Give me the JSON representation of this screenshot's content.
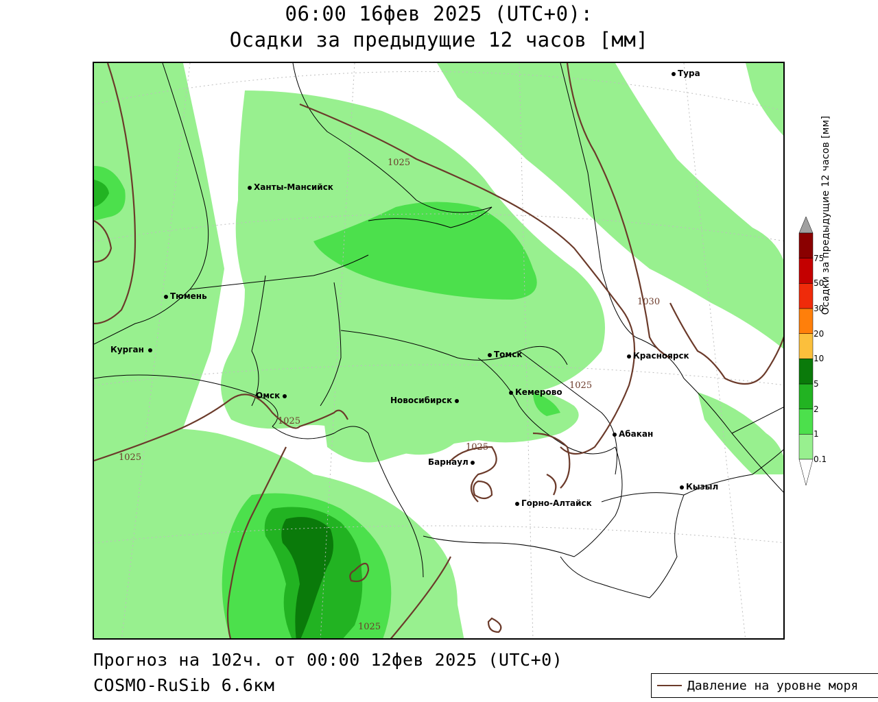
{
  "header": {
    "title_line1": "06:00 16фев 2025 (UTC+0):",
    "title_line2": "Осадки за предыдущие 12 часов [мм]"
  },
  "footer": {
    "forecast": "Прогноз на 102ч. от 00:00 12фев 2025 (UTC+0)",
    "model": "COSMO-RuSib 6.6км"
  },
  "legend": {
    "pressure_label": "Давление на уровне моря"
  },
  "colorbar": {
    "title": "Осадки за предыдущие 12 часов [мм]",
    "levels": [
      {
        "label": "0.1",
        "color": "#98f08f"
      },
      {
        "label": "1",
        "color": "#4ce04c"
      },
      {
        "label": "2",
        "color": "#22b322"
      },
      {
        "label": "5",
        "color": "#0a7a0a"
      },
      {
        "label": "10",
        "color": "#fbbf3c"
      },
      {
        "label": "20",
        "color": "#ff7f0a"
      },
      {
        "label": "30",
        "color": "#ef2b0a"
      },
      {
        "label": "50",
        "color": "#c40000"
      },
      {
        "label": "75",
        "color": "#8a0000"
      }
    ],
    "overflow_color": "#a0a0a0"
  },
  "cities": [
    {
      "name": "Тура"
    },
    {
      "name": "Ханты-Мансийск"
    },
    {
      "name": "Тюмень"
    },
    {
      "name": "Курган"
    },
    {
      "name": "Омск"
    },
    {
      "name": "Новосибирск"
    },
    {
      "name": "Томск"
    },
    {
      "name": "Кемерово"
    },
    {
      "name": "Красноярск"
    },
    {
      "name": "Абакан"
    },
    {
      "name": "Барнаул"
    },
    {
      "name": "Горно-Алтайск"
    },
    {
      "name": "Кызыл"
    }
  ],
  "isobar_labels": [
    "1025",
    "1025",
    "1025",
    "1025",
    "1025",
    "1025",
    "1030"
  ],
  "colors": {
    "light_green": "#98f08f",
    "mid_green": "#4ce04c",
    "green": "#22b322",
    "dark_green": "#0a7a0a",
    "isobar": "#6b3a2a",
    "border": "#000000"
  }
}
